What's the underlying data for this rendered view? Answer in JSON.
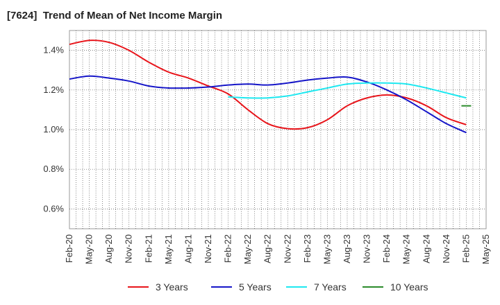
{
  "chart_data": {
    "type": "line",
    "title": "[7624]  Trend of Mean of Net Income Margin",
    "xlabel": "",
    "ylabel": "",
    "x_ticks": [
      "Feb-20",
      "May-20",
      "Aug-20",
      "Nov-20",
      "Feb-21",
      "May-21",
      "Aug-21",
      "Nov-21",
      "Feb-22",
      "May-22",
      "Aug-22",
      "Nov-22",
      "Feb-23",
      "May-23",
      "Aug-23",
      "Nov-23",
      "Feb-24",
      "May-24",
      "Aug-24",
      "Nov-24",
      "Feb-25",
      "May-25"
    ],
    "y_ticks": [
      "0.6%",
      "0.8%",
      "1.0%",
      "1.2%",
      "1.4%"
    ],
    "y_tick_values": [
      0.6,
      0.8,
      1.0,
      1.2,
      1.4
    ],
    "ylim": [
      0.5,
      1.5
    ],
    "grid": true,
    "legend_position": "bottom",
    "series": [
      {
        "name": "3 Years",
        "color": "#e8141a",
        "points": [
          [
            "Feb-20",
            1.43
          ],
          [
            "May-20",
            1.45
          ],
          [
            "Aug-20",
            1.44
          ],
          [
            "Nov-20",
            1.4
          ],
          [
            "Feb-21",
            1.34
          ],
          [
            "May-21",
            1.29
          ],
          [
            "Aug-21",
            1.26
          ],
          [
            "Nov-21",
            1.22
          ],
          [
            "Feb-22",
            1.18
          ],
          [
            "May-22",
            1.1
          ],
          [
            "Aug-22",
            1.03
          ],
          [
            "Nov-22",
            1.005
          ],
          [
            "Feb-23",
            1.01
          ],
          [
            "May-23",
            1.05
          ],
          [
            "Aug-23",
            1.12
          ],
          [
            "Nov-23",
            1.16
          ],
          [
            "Feb-24",
            1.175
          ],
          [
            "May-24",
            1.16
          ],
          [
            "Aug-24",
            1.12
          ],
          [
            "Nov-24",
            1.06
          ],
          [
            "Feb-25",
            1.025
          ]
        ]
      },
      {
        "name": "5 Years",
        "color": "#1515c8",
        "points": [
          [
            "Feb-20",
            1.255
          ],
          [
            "May-20",
            1.27
          ],
          [
            "Aug-20",
            1.26
          ],
          [
            "Nov-20",
            1.245
          ],
          [
            "Feb-21",
            1.22
          ],
          [
            "May-21",
            1.21
          ],
          [
            "Aug-21",
            1.21
          ],
          [
            "Nov-21",
            1.215
          ],
          [
            "Feb-22",
            1.225
          ],
          [
            "May-22",
            1.23
          ],
          [
            "Aug-22",
            1.225
          ],
          [
            "Nov-22",
            1.235
          ],
          [
            "Feb-23",
            1.25
          ],
          [
            "May-23",
            1.26
          ],
          [
            "Aug-23",
            1.265
          ],
          [
            "Nov-23",
            1.24
          ],
          [
            "Feb-24",
            1.2
          ],
          [
            "May-24",
            1.15
          ],
          [
            "Aug-24",
            1.09
          ],
          [
            "Nov-24",
            1.03
          ],
          [
            "Feb-25",
            0.985
          ]
        ]
      },
      {
        "name": "7 Years",
        "color": "#1de8f0",
        "points": [
          [
            "Feb-22",
            1.165
          ],
          [
            "May-22",
            1.16
          ],
          [
            "Aug-22",
            1.16
          ],
          [
            "Nov-22",
            1.17
          ],
          [
            "Feb-23",
            1.19
          ],
          [
            "May-23",
            1.21
          ],
          [
            "Aug-23",
            1.23
          ],
          [
            "Nov-23",
            1.235
          ],
          [
            "Feb-24",
            1.235
          ],
          [
            "May-24",
            1.23
          ],
          [
            "Aug-24",
            1.21
          ],
          [
            "Nov-24",
            1.185
          ],
          [
            "Feb-25",
            1.16
          ]
        ]
      },
      {
        "name": "10 Years",
        "color": "#2a8a2a",
        "points": [
          [
            "Feb-25",
            1.12
          ]
        ]
      }
    ]
  }
}
